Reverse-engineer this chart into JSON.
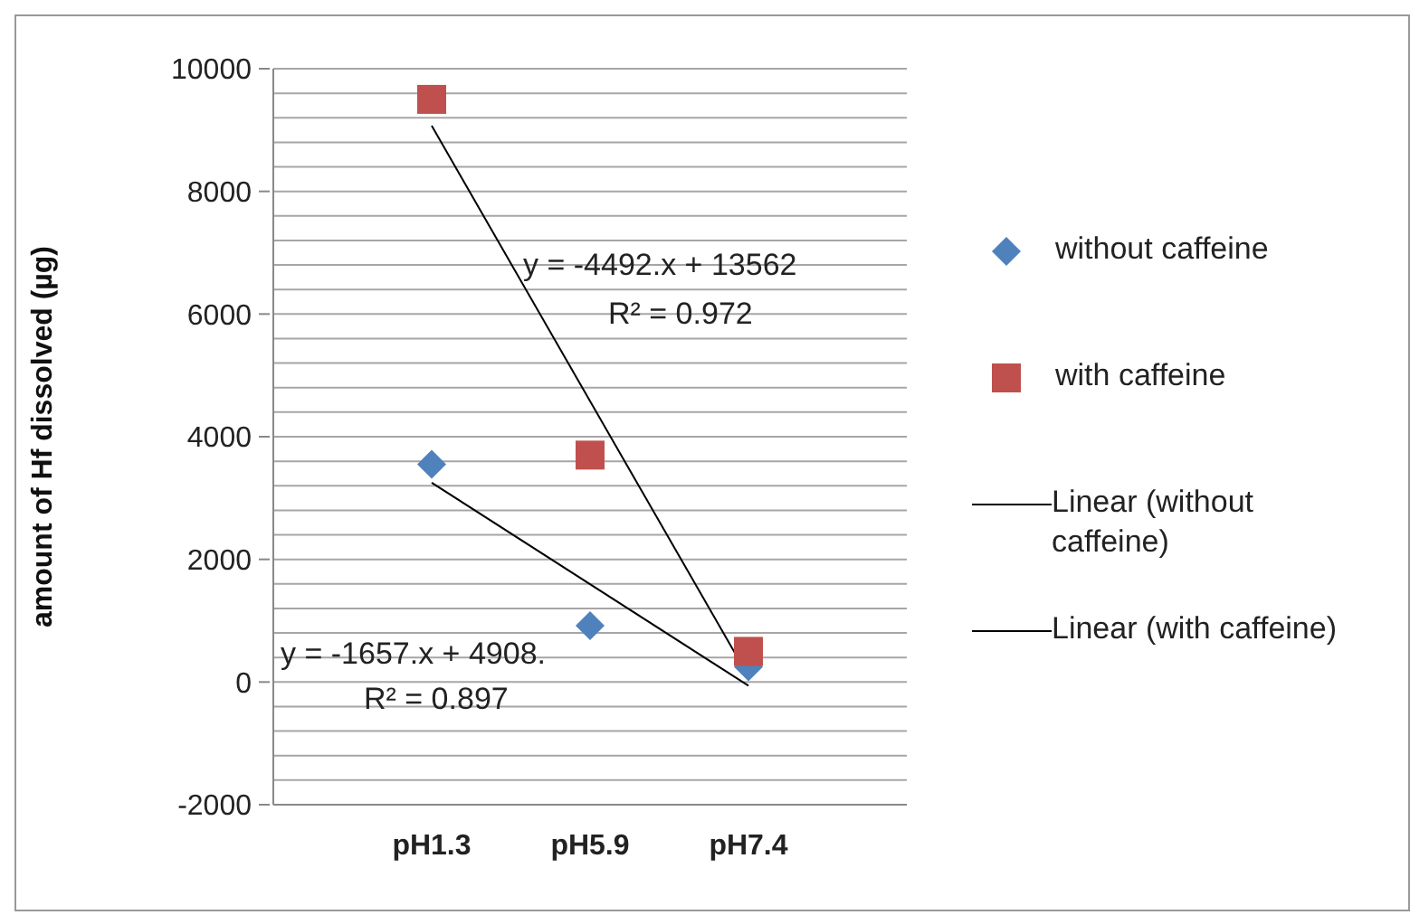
{
  "chart_data": {
    "type": "scatter",
    "ylabel": "amount of Hf dissolved (µg)",
    "categories": [
      "pH1.3",
      "pH5.9",
      "pH7.4"
    ],
    "series": [
      {
        "name": "without caffeine",
        "color": "#4f81bd",
        "marker": "diamond",
        "values": [
          3550,
          920,
          250
        ]
      },
      {
        "name": "with caffeine",
        "color": "#c0504d",
        "marker": "square",
        "values": [
          9500,
          3700,
          500
        ]
      },
      {
        "name": "Linear (without caffeine)",
        "type": "line",
        "color": "#000000",
        "marker": "none",
        "x": [
          "pH1.3",
          "pH7.4"
        ],
        "values": [
          3250,
          -60
        ]
      },
      {
        "name": "Linear (with caffeine)",
        "type": "line",
        "color": "#000000",
        "marker": "none",
        "x": [
          "pH1.3",
          "pH7.4"
        ],
        "values": [
          9070,
          90
        ]
      }
    ],
    "annotations": [
      "y = -4492.x + 13562",
      "R² = 0.972",
      "y = -1657.x + 4908.",
      "R² = 0.897"
    ],
    "ylim": [
      -2000,
      10000
    ],
    "yticks": [
      -2000,
      {
        "value": -1600,
        "label": null
      },
      {
        "value": -1200,
        "label": null
      },
      {
        "value": -800,
        "label": null
      },
      {
        "value": -400,
        "label": null
      },
      0,
      {
        "value": 400,
        "label": null
      },
      {
        "value": 800,
        "label": null
      },
      {
        "value": 1200,
        "label": null
      },
      {
        "value": 1600,
        "label": null
      },
      2000,
      {
        "value": 2400,
        "label": null
      },
      {
        "value": 2800,
        "label": null
      },
      {
        "value": 3200,
        "label": null
      },
      {
        "value": 3600,
        "label": null
      },
      4000,
      {
        "value": 4400,
        "label": null
      },
      {
        "value": 4800,
        "label": null
      },
      {
        "value": 5200,
        "label": null
      },
      {
        "value": 5600,
        "label": null
      },
      6000,
      {
        "value": 6400,
        "label": null
      },
      {
        "value": 6800,
        "label": null
      },
      {
        "value": 7200,
        "label": null
      },
      {
        "value": 7600,
        "label": null
      },
      8000,
      {
        "value": 8400,
        "label": null
      },
      {
        "value": 8800,
        "label": null
      },
      {
        "value": 9200,
        "label": null
      },
      {
        "value": 9600,
        "label": null
      },
      10000
    ],
    "grid": "y",
    "legend": "right"
  }
}
